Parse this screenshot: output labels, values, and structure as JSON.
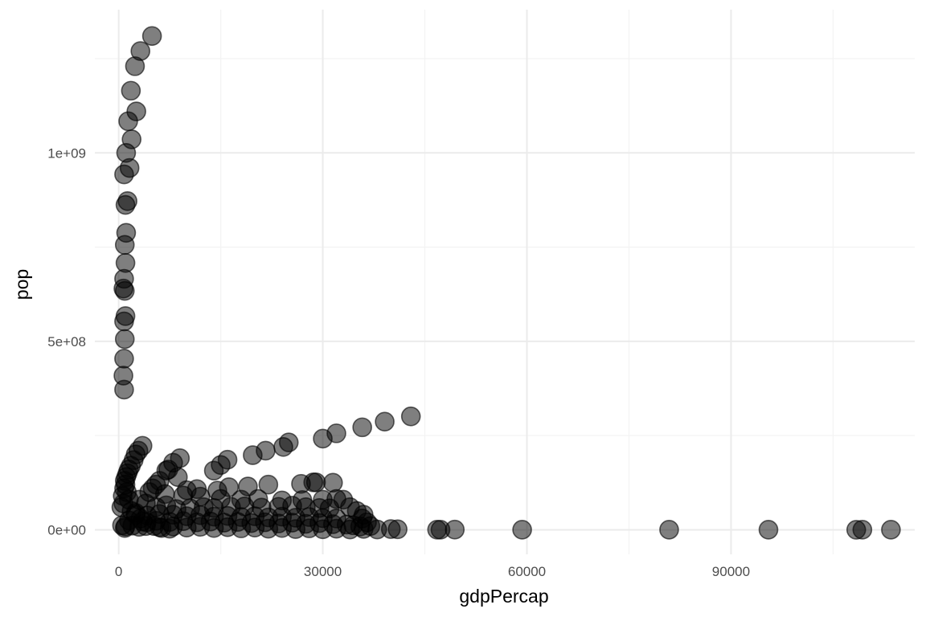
{
  "chart_data": {
    "type": "scatter",
    "title": "",
    "xlabel": "gdpPercap",
    "ylabel": "pop",
    "xlim": [
      -3500,
      117000
    ],
    "ylim": [
      -65000000,
      1380000000
    ],
    "x_ticks": [
      0,
      30000,
      60000,
      90000
    ],
    "x_tick_labels": [
      "0",
      "30000",
      "60000",
      "90000"
    ],
    "y_ticks": [
      0,
      500000000,
      1000000000
    ],
    "y_tick_labels": [
      "0e+00",
      "5e+08",
      "1e+09"
    ],
    "grid": true,
    "legend": "none",
    "point_color": "#000000",
    "point_alpha": 0.5,
    "points": [
      [
        800,
        372000000
      ],
      [
        700,
        409000000
      ],
      [
        800,
        454000000
      ],
      [
        900,
        506000000
      ],
      [
        800,
        553000000
      ],
      [
        1000,
        567000000
      ],
      [
        900,
        634000000
      ],
      [
        700,
        640000000
      ],
      [
        800,
        666000000
      ],
      [
        1000,
        708000000
      ],
      [
        900,
        756000000
      ],
      [
        1100,
        788000000
      ],
      [
        1000,
        862000000
      ],
      [
        1300,
        872000000
      ],
      [
        800,
        943000000
      ],
      [
        1600,
        960000000
      ],
      [
        1100,
        1000000000
      ],
      [
        1900,
        1036000000
      ],
      [
        1400,
        1084000000
      ],
      [
        2600,
        1110000000
      ],
      [
        1800,
        1165000000
      ],
      [
        2400,
        1230000000
      ],
      [
        3200,
        1270000000
      ],
      [
        4900,
        1310000000
      ],
      [
        2900,
        210000000
      ],
      [
        3500,
        223000000
      ],
      [
        2500,
        200000000
      ],
      [
        2200,
        185000000
      ],
      [
        1800,
        170000000
      ],
      [
        1500,
        160000000
      ],
      [
        1300,
        150000000
      ],
      [
        1100,
        140000000
      ],
      [
        900,
        130000000
      ],
      [
        1000,
        120000000
      ],
      [
        800,
        110000000
      ],
      [
        1200,
        100000000
      ],
      [
        600,
        90000000
      ],
      [
        1500,
        80000000
      ],
      [
        700,
        70000000
      ],
      [
        400,
        60000000
      ],
      [
        1900,
        50000000
      ],
      [
        2500,
        40000000
      ],
      [
        3200,
        30000000
      ],
      [
        4100,
        20000000
      ],
      [
        5200,
        10000000
      ],
      [
        6300,
        5000000
      ],
      [
        7500,
        3000000
      ],
      [
        900,
        5000000
      ],
      [
        13990,
        157000000
      ],
      [
        15000,
        172000000
      ],
      [
        16000,
        186000000
      ],
      [
        19700,
        198000000
      ],
      [
        21600,
        210000000
      ],
      [
        24200,
        220000000
      ],
      [
        25000,
        232000000
      ],
      [
        30000,
        242000000
      ],
      [
        32000,
        256000000
      ],
      [
        35800,
        272000000
      ],
      [
        39100,
        287000000
      ],
      [
        42950,
        301000000
      ],
      [
        7000,
        157000000
      ],
      [
        7300,
        160000000
      ],
      [
        8000,
        178000000
      ],
      [
        9000,
        190000000
      ],
      [
        5500,
        120000000
      ],
      [
        6000,
        130000000
      ],
      [
        8700,
        140000000
      ],
      [
        4500,
        100000000
      ],
      [
        5000,
        110000000
      ],
      [
        6800,
        95000000
      ],
      [
        10000,
        105000000
      ],
      [
        11500,
        108000000
      ],
      [
        14500,
        104000000
      ],
      [
        16200,
        113000000
      ],
      [
        19000,
        115000000
      ],
      [
        22000,
        120000000
      ],
      [
        26800,
        122000000
      ],
      [
        28600,
        126000000
      ],
      [
        31500,
        125000000
      ],
      [
        29000,
        126000000
      ],
      [
        9500,
        91000000
      ],
      [
        12000,
        88000000
      ],
      [
        15000,
        82000000
      ],
      [
        18000,
        80000000
      ],
      [
        20500,
        82000000
      ],
      [
        24000,
        78000000
      ],
      [
        27000,
        79000000
      ],
      [
        30000,
        80000000
      ],
      [
        33000,
        80000000
      ],
      [
        32000,
        82000000
      ],
      [
        34000,
        60000000
      ],
      [
        35000,
        50000000
      ],
      [
        36000,
        40000000
      ],
      [
        35800,
        30000000
      ],
      [
        36500,
        20000000
      ],
      [
        37000,
        10000000
      ],
      [
        3000,
        80000000
      ],
      [
        4000,
        70000000
      ],
      [
        5500,
        60000000
      ],
      [
        7000,
        65000000
      ],
      [
        8500,
        55000000
      ],
      [
        10500,
        57000000
      ],
      [
        12500,
        60000000
      ],
      [
        14000,
        58000000
      ],
      [
        16500,
        61000000
      ],
      [
        18500,
        62000000
      ],
      [
        21000,
        59000000
      ],
      [
        23500,
        61000000
      ],
      [
        25500,
        64000000
      ],
      [
        27500,
        60000000
      ],
      [
        29500,
        58000000
      ],
      [
        31000,
        57000000
      ],
      [
        2500,
        45000000
      ],
      [
        4200,
        38000000
      ],
      [
        6000,
        42000000
      ],
      [
        8000,
        40000000
      ],
      [
        10000,
        36000000
      ],
      [
        12000,
        39000000
      ],
      [
        14000,
        35000000
      ],
      [
        16000,
        37000000
      ],
      [
        18000,
        34000000
      ],
      [
        20000,
        36000000
      ],
      [
        22000,
        33000000
      ],
      [
        24000,
        35000000
      ],
      [
        26000,
        32000000
      ],
      [
        28000,
        34000000
      ],
      [
        30000,
        31000000
      ],
      [
        32000,
        30000000
      ],
      [
        1500,
        25000000
      ],
      [
        3500,
        22000000
      ],
      [
        5500,
        24000000
      ],
      [
        7500,
        21000000
      ],
      [
        9500,
        23000000
      ],
      [
        11500,
        20000000
      ],
      [
        13500,
        22000000
      ],
      [
        15500,
        19000000
      ],
      [
        17500,
        21000000
      ],
      [
        19500,
        18000000
      ],
      [
        21500,
        20000000
      ],
      [
        23500,
        17000000
      ],
      [
        25500,
        19000000
      ],
      [
        27500,
        16000000
      ],
      [
        29500,
        18000000
      ],
      [
        31500,
        15000000
      ],
      [
        33500,
        14000000
      ],
      [
        34500,
        12000000
      ],
      [
        35500,
        9000000
      ],
      [
        500,
        12000000
      ],
      [
        1000,
        9000000
      ],
      [
        2000,
        11000000
      ],
      [
        3000,
        8000000
      ],
      [
        4000,
        10000000
      ],
      [
        6000,
        7000000
      ],
      [
        8000,
        9000000
      ],
      [
        10000,
        6000000
      ],
      [
        12000,
        8000000
      ],
      [
        14000,
        5000000
      ],
      [
        16000,
        7000000
      ],
      [
        18000,
        4000000
      ],
      [
        20000,
        6000000
      ],
      [
        22000,
        3000000
      ],
      [
        24000,
        5000000
      ],
      [
        26000,
        2000000
      ],
      [
        28000,
        4000000
      ],
      [
        30000,
        1500000
      ],
      [
        32000,
        3000000
      ],
      [
        34000,
        1000000
      ],
      [
        36000,
        2500000
      ],
      [
        38000,
        1000000
      ],
      [
        40000,
        2000000
      ],
      [
        41000,
        1500000
      ],
      [
        46800,
        500000
      ],
      [
        47300,
        400000
      ],
      [
        49400,
        600000
      ],
      [
        59300,
        300000
      ],
      [
        80900,
        400000
      ],
      [
        95500,
        300000
      ],
      [
        108400,
        200000
      ],
      [
        109300,
        300000
      ],
      [
        113500,
        400000
      ]
    ]
  }
}
